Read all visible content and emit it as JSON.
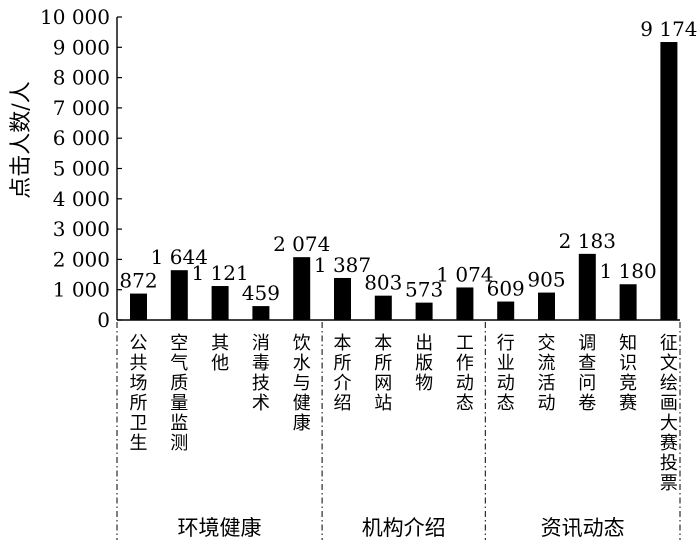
{
  "chart_data": {
    "type": "bar",
    "ylabel": "点击人数/人",
    "ylim": [
      0,
      10000
    ],
    "y_ticks": [
      "0",
      "1 000",
      "2 000",
      "3 000",
      "4 000",
      "5 000",
      "6 000",
      "7 000",
      "8 000",
      "9 000",
      "10 000"
    ],
    "grid": false,
    "categories": [
      "公共场所卫生",
      "空气质量监测",
      "其他",
      "消毒技术",
      "饮水与健康",
      "本所介绍",
      "本所网站",
      "出版物",
      "工作动态",
      "行业动态",
      "交流活动",
      "调查问卷",
      "知识竞赛",
      "征文绘画大赛投票"
    ],
    "values": [
      872,
      1644,
      1121,
      459,
      2074,
      1387,
      803,
      573,
      1074,
      609,
      905,
      2183,
      1180,
      9174
    ],
    "value_labels": [
      "872",
      "1 644",
      "1 121",
      "459",
      "2 074",
      "1 387",
      "803",
      "573",
      "1 074",
      "609",
      "905",
      "2 183",
      "1 180",
      "9 174"
    ],
    "groups": [
      {
        "name": "环境健康",
        "count": 5
      },
      {
        "name": "机构介绍",
        "count": 4
      },
      {
        "name": "资讯动态",
        "count": 5
      }
    ],
    "bar_color": "#000000"
  }
}
